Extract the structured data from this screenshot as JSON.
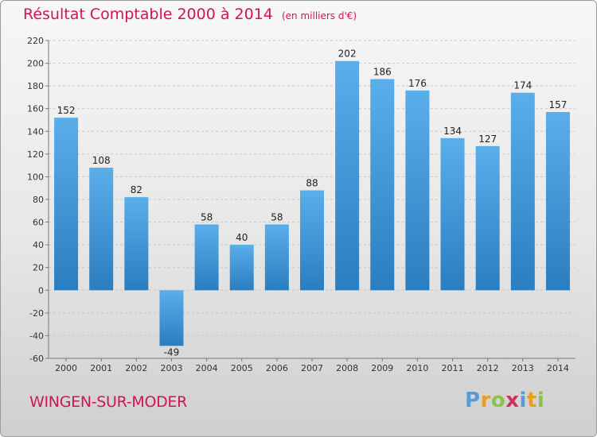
{
  "title": "Résultat Comptable 2000 à 2014",
  "unit": "(en milliers d'€)",
  "commune": "WINGEN-SUR-MODER",
  "brand": [
    "P",
    "r",
    "o",
    "x",
    "i",
    "t",
    "i"
  ],
  "colors": {
    "title": "#d0145a",
    "bar_light": "#5aaeea",
    "bar_dark": "#2a7ec0",
    "brand": [
      "#5b9bd5",
      "#e8a020",
      "#8bc34a",
      "#d03060",
      "#5b9bd5",
      "#e8a020",
      "#8bc34a"
    ]
  },
  "chart_data": {
    "type": "bar",
    "categories": [
      "2000",
      "2001",
      "2002",
      "2003",
      "2004",
      "2005",
      "2006",
      "2007",
      "2008",
      "2009",
      "2010",
      "2011",
      "2012",
      "2013",
      "2014"
    ],
    "values": [
      152,
      108,
      82,
      -49,
      58,
      40,
      58,
      88,
      202,
      186,
      176,
      134,
      127,
      174,
      157
    ],
    "ylim": [
      -60,
      220
    ],
    "yticks": [
      220,
      200,
      180,
      160,
      140,
      120,
      100,
      80,
      60,
      40,
      20,
      0,
      -20,
      -40,
      -60
    ],
    "grid": "horizontal dashed",
    "title": "Résultat Comptable 2000 à 2014",
    "ylabel": "",
    "xlabel": ""
  }
}
